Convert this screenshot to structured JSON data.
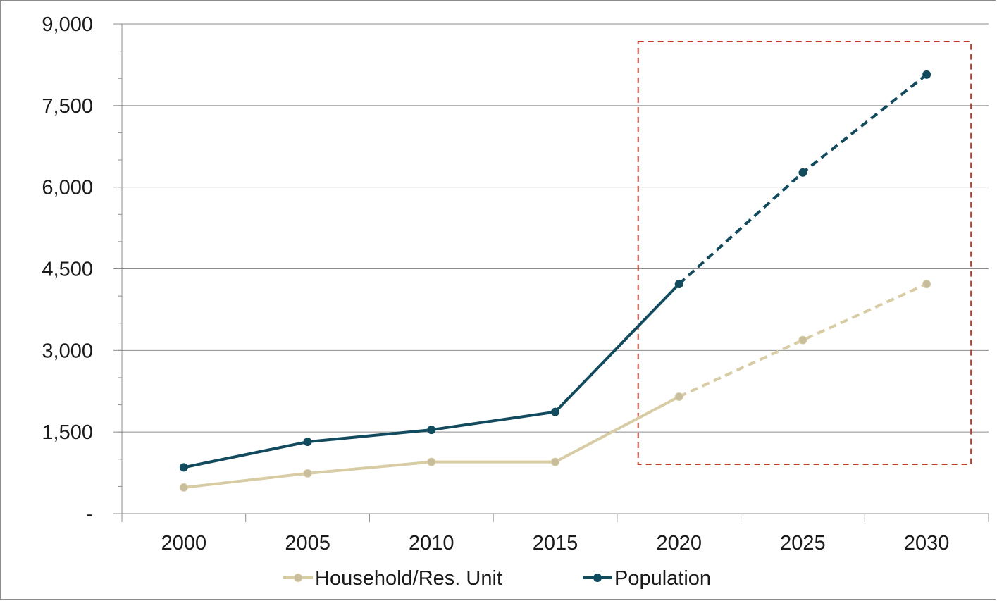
{
  "chart_data": {
    "type": "line",
    "categories": [
      "2000",
      "2005",
      "2010",
      "2015",
      "2020",
      "2025",
      "2030"
    ],
    "y_tick_labels": [
      "-",
      "1,500",
      "3,000",
      "4,500",
      "6,000",
      "7,500",
      "9,000"
    ],
    "y_tick_values": [
      0,
      1500,
      3000,
      4500,
      6000,
      7500,
      9000
    ],
    "ylim": [
      0,
      9000
    ],
    "grid": "horizontal major gridlines",
    "legend_position": "bottom",
    "projection_start_index": 4,
    "highlight_box": {
      "from_category": "2020",
      "to_category": "2030",
      "color": "#c0392b"
    },
    "series": [
      {
        "name": "Household/Res. Unit",
        "color": "#d8cca5",
        "marker_color": "#c9be9c",
        "values": [
          480,
          740,
          950,
          950,
          2150,
          3190,
          4220
        ]
      },
      {
        "name": "Population",
        "color": "#124a5e",
        "marker_color": "#124a5e",
        "values": [
          850,
          1320,
          1540,
          1870,
          4220,
          6270,
          8070
        ]
      }
    ]
  }
}
